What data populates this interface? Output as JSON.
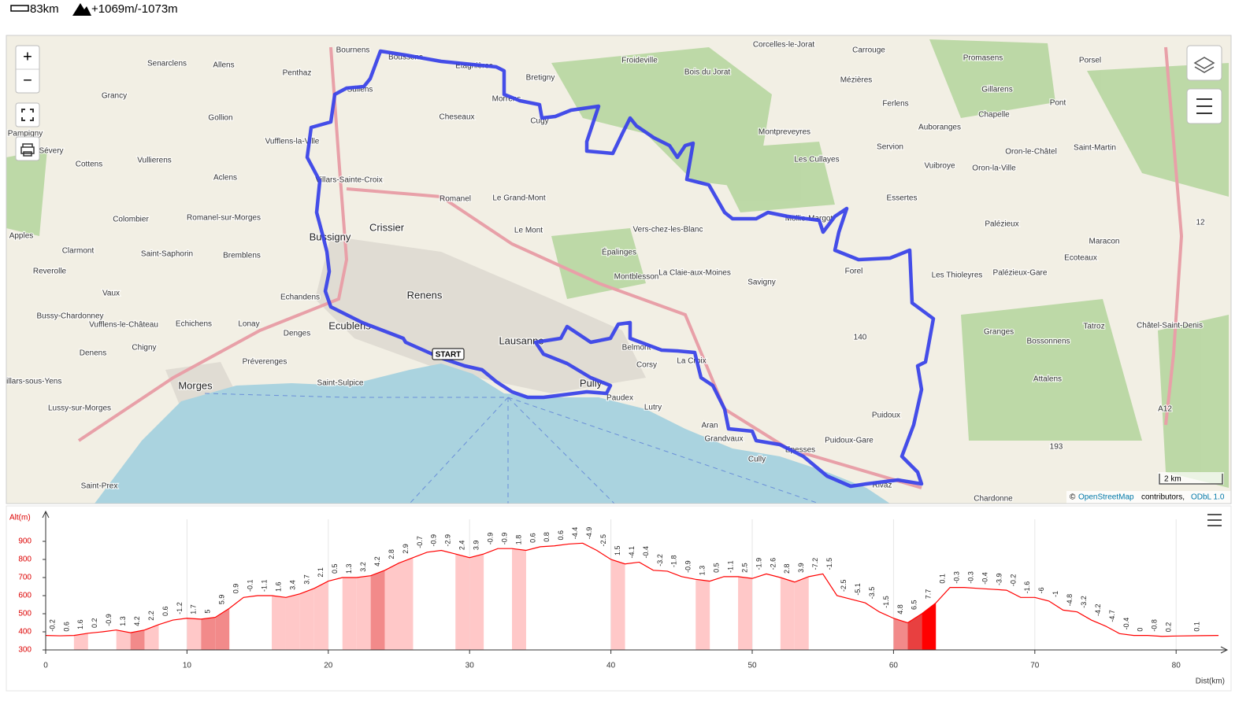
{
  "header": {
    "distance": "83km",
    "elevation": "+1069m/-1073m"
  },
  "map": {
    "places": [
      "Bournens",
      "Boussens",
      "Etagnières",
      "Froideville",
      "Bois du Jorat",
      "Corcelles-le-Jorat",
      "Carrouge",
      "Promasens",
      "Porsel",
      "Senarclens",
      "Allens",
      "Penthaz",
      "Bretigny",
      "Mézières",
      "Gillarens",
      "Sullens",
      "Morrens",
      "Grancy",
      "Ferlens",
      "Pont",
      "Gollion",
      "Cheseaux",
      "Cugy",
      "Chapelle",
      "Auboranges",
      "Montpreveyres",
      "Vufflens-la-Ville",
      "Pampigny",
      "Sévery",
      "Vullierens",
      "Cottens",
      "Servion",
      "Oron-le-Châtel",
      "Saint-Martin",
      "Vuibroye",
      "Oron-la-Ville",
      "Les Cullayes",
      "Villars-Sainte-Croix",
      "Aclens",
      "Romanel",
      "Le Grand-Mont",
      "Essertes",
      "Romanel-sur-Morges",
      "Colombier",
      "Crissier",
      "Bussigny",
      "Le Mont",
      "Vers-chez-les-Blanc",
      "Mollie-Margot",
      "Palézieux",
      "Apples",
      "Clarmont",
      "Saint-Saphorin",
      "Bremblens",
      "Épalinges",
      "Maracon",
      "Ecoteaux",
      "Reverolle",
      "Montblesson",
      "La Claie-aux-Moines",
      "Forel",
      "Les Thioleyres",
      "Palézieux-Gare",
      "Savigny",
      "Renens",
      "Echandens",
      "Vaux",
      "Bussy-Chardonney",
      "Vufflens-le-Château",
      "Ecublens",
      "Echichens",
      "Lonay",
      "Denges",
      "Lausanne",
      "Chigny",
      "Belmont",
      "La Croix",
      "Corsy",
      "Granges",
      "Tatroz",
      "Châtel-Saint-Denis",
      "Bossonnens",
      "Denens",
      "Préverenges",
      "Morges",
      "Saint-Sulpice",
      "Pully",
      "Paudex",
      "Lutry",
      "Attalens",
      "Villars-sous-Yens",
      "Lussy-sur-Morges",
      "Aran",
      "Grandvaux",
      "Puidoux",
      "Puidoux-Gare",
      "Cully",
      "Epesses",
      "Saint-Prex",
      "Rivaz",
      "Chardonne",
      "140",
      "193",
      "A12",
      "12"
    ],
    "start_label": "START",
    "scale": "2 km",
    "zoom_in": "+",
    "zoom_out": "−",
    "attribution": {
      "prefix": "©",
      "osm": "OpenStreetMap",
      "contributors": "contributors,",
      "license": "ODbL 1.0"
    }
  },
  "chart_data": {
    "type": "area",
    "x_label": "Dist(km)",
    "y_label": "Alt(m)",
    "color": "#ff0000",
    "x": [
      0,
      1,
      2,
      3,
      4,
      5,
      6,
      7,
      8,
      9,
      10,
      11,
      12,
      13,
      14,
      15,
      16,
      17,
      18,
      19,
      20,
      21,
      22,
      23,
      24,
      25,
      26,
      27,
      28,
      29,
      30,
      31,
      32,
      33,
      34,
      35,
      36,
      37,
      38,
      39,
      40,
      41,
      42,
      43,
      44,
      45,
      46,
      47,
      48,
      49,
      50,
      51,
      52,
      53,
      54,
      55,
      56,
      57,
      58,
      59,
      60,
      61,
      62,
      63,
      64,
      65,
      66,
      67,
      68,
      69,
      70,
      71,
      72,
      73,
      74,
      75,
      76,
      77,
      78,
      79,
      80,
      83
    ],
    "values": [
      380,
      378,
      380,
      392,
      400,
      410,
      395,
      410,
      440,
      465,
      475,
      470,
      480,
      530,
      590,
      600,
      600,
      590,
      610,
      640,
      680,
      700,
      700,
      710,
      740,
      780,
      810,
      840,
      850,
      830,
      810,
      830,
      860,
      860,
      850,
      870,
      875,
      885,
      890,
      850,
      800,
      775,
      785,
      740,
      735,
      705,
      690,
      680,
      705,
      705,
      695,
      720,
      700,
      675,
      705,
      720,
      600,
      580,
      560,
      510,
      475,
      450,
      500,
      560,
      645,
      645,
      640,
      635,
      630,
      590,
      590,
      570,
      520,
      510,
      465,
      432,
      390,
      380,
      380,
      375,
      377,
      380
    ],
    "slope_values": [
      -0.2,
      0.6,
      1.6,
      0.2,
      -0.9,
      1.3,
      4.2,
      2.2,
      0.6,
      -1.2,
      1.7,
      5,
      5.9,
      0.9,
      -0.1,
      -1.1,
      1.6,
      3.4,
      3.7,
      2.1,
      0.5,
      1.3,
      3.2,
      4.2,
      2.8,
      2.9,
      -0.7,
      -0.9,
      -2.9,
      2.4,
      3.9,
      -0.9,
      -0.9,
      1.8,
      0.6,
      0.8,
      0.6,
      -4.4,
      -4.9,
      -2.5,
      1.5,
      -4.1,
      -0.4,
      -3.2,
      -1.8,
      -0.9,
      1.3,
      0.5,
      -1.1,
      2.5,
      -1.9,
      -2.6,
      2.8,
      3.9,
      -7.2,
      -1.5,
      -2.5,
      -5.1,
      -3.5,
      -1.5,
      4.8,
      6.5,
      7.7,
      0.1,
      -0.3,
      -0.3,
      -0.4,
      -3.9,
      -0.2,
      -1.6,
      -6,
      -1,
      -4.8,
      -3.2,
      -4.2,
      -4.7,
      -0.4,
      0,
      -0.8,
      0.2,
      0.1
    ],
    "xlim": [
      0,
      83.5
    ],
    "ylim": [
      300,
      1000
    ],
    "xticks": [
      0,
      10,
      20,
      30,
      40,
      50,
      60,
      70,
      80
    ],
    "yticks": [
      300,
      400,
      500,
      600,
      700,
      800,
      900
    ],
    "grid": "x"
  }
}
